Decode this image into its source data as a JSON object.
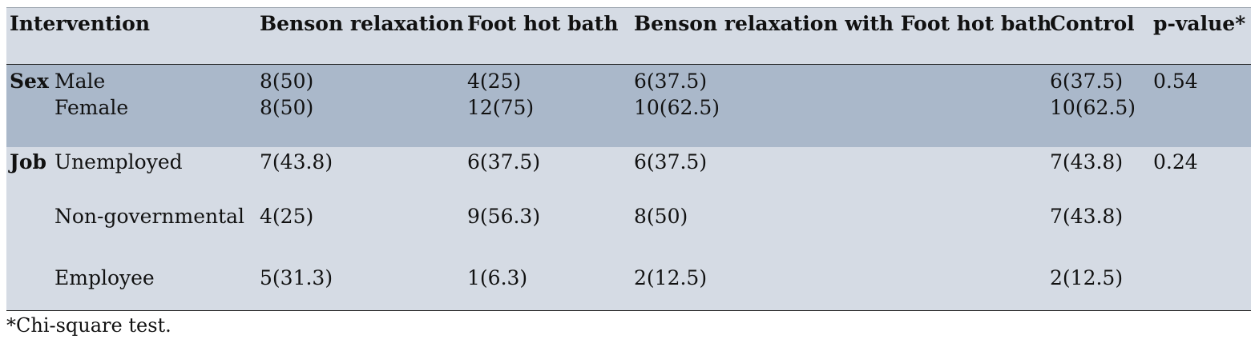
{
  "header": {
    "intervention": "Intervention",
    "benson": "Benson relaxation",
    "foot": "Foot hot bath",
    "combined": "Benson relaxation with Foot hot bath",
    "control": "Control",
    "pvalue": "p-value*"
  },
  "sex": {
    "label": "Sex",
    "p": "0.54",
    "rows": [
      {
        "category": "Male",
        "benson": "8(50)",
        "foot": "4(25)",
        "combined": "6(37.5)",
        "control": "6(37.5)"
      },
      {
        "category": "Female",
        "benson": "8(50)",
        "foot": "12(75)",
        "combined": "10(62.5)",
        "control": "10(62.5)"
      }
    ]
  },
  "job": {
    "label": "Job",
    "p": "0.24",
    "rows": [
      {
        "category": "Unemployed",
        "benson": "7(43.8)",
        "foot": "6(37.5)",
        "combined": "6(37.5)",
        "control": "7(43.8)"
      },
      {
        "category": "Non-governmental",
        "benson": "4(25)",
        "foot": "9(56.3)",
        "combined": "8(50)",
        "control": "7(43.8)"
      },
      {
        "category": "Employee",
        "benson": "5(31.3)",
        "foot": "1(6.3)",
        "combined": "2(12.5)",
        "control": "2(12.5)"
      }
    ]
  },
  "footnote": "*Chi-square test."
}
